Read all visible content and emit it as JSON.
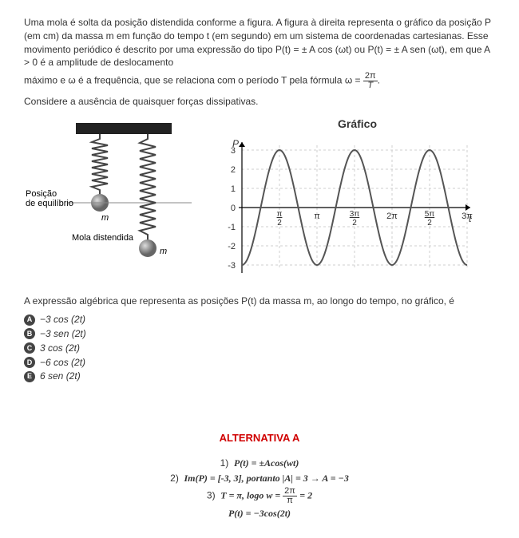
{
  "problem": {
    "p1": "Uma mola é solta da posição distendida conforme a figura. A figura à direita representa o gráfico da posição P (em cm) da massa m em função do tempo t (em segundo) em um sistema de coordenadas cartesianas. Esse movimento periódico é descrito por uma expressão do tipo P(t) = ± A cos (ωt)  ou P(t) = ± A sen (ωt), em que A > 0 é a amplitude de deslocamento",
    "p2_prefix": "máximo e ω é a frequência, que se relaciona com o período T pela fórmula ω = ",
    "p3": "Considere a ausência de quaisquer forças dissipativas."
  },
  "spring_labels": {
    "equilibrium": "Posição\nde equilíbrio",
    "distended": "Mola distendida",
    "mass": "m",
    "mass2": "m"
  },
  "chart": {
    "title": "Gráfico",
    "y_axis_label": "P",
    "x_axis_label": "t",
    "amplitude": 3,
    "omega": 2,
    "ylim": [
      -3,
      3
    ],
    "yticks": [
      -3,
      -2,
      -1,
      0,
      1,
      2,
      3
    ],
    "xticks": [
      "π/2",
      "π",
      "3π/2",
      "2π",
      "5π/2",
      "3π"
    ],
    "background_color": "#ffffff",
    "grid_color": "#cfcfcf",
    "curve_color": "#555555",
    "axis_color": "#000000",
    "curve_width": 2,
    "function": "-3*cos(2t)"
  },
  "question": "A expressão algébrica que representa as posições P(t) da massa m, ao longo do tempo, no gráfico, é",
  "choices": [
    {
      "badge": "A",
      "text": "−3 cos (2t)"
    },
    {
      "badge": "B",
      "text": "−3 sen (2t)"
    },
    {
      "badge": "C",
      "text": "3 cos (2t)"
    },
    {
      "badge": "D",
      "text": "−6 cos (2t)"
    },
    {
      "badge": "E",
      "text": "6 sen (2t)"
    }
  ],
  "answer": {
    "title": "ALTERNATIVA A",
    "s1_num": "1)",
    "s1": "P(t) = ±Acos(wt)",
    "s2_num": "2)",
    "s2": "Im(P) = [-3, 3], portanto |A| = 3 → A = −3",
    "s3_num": "3)",
    "s3_part1": "T = π, logo w = ",
    "s3_part2": " = 2",
    "s4": "P(t) = −3cos(2t)"
  }
}
